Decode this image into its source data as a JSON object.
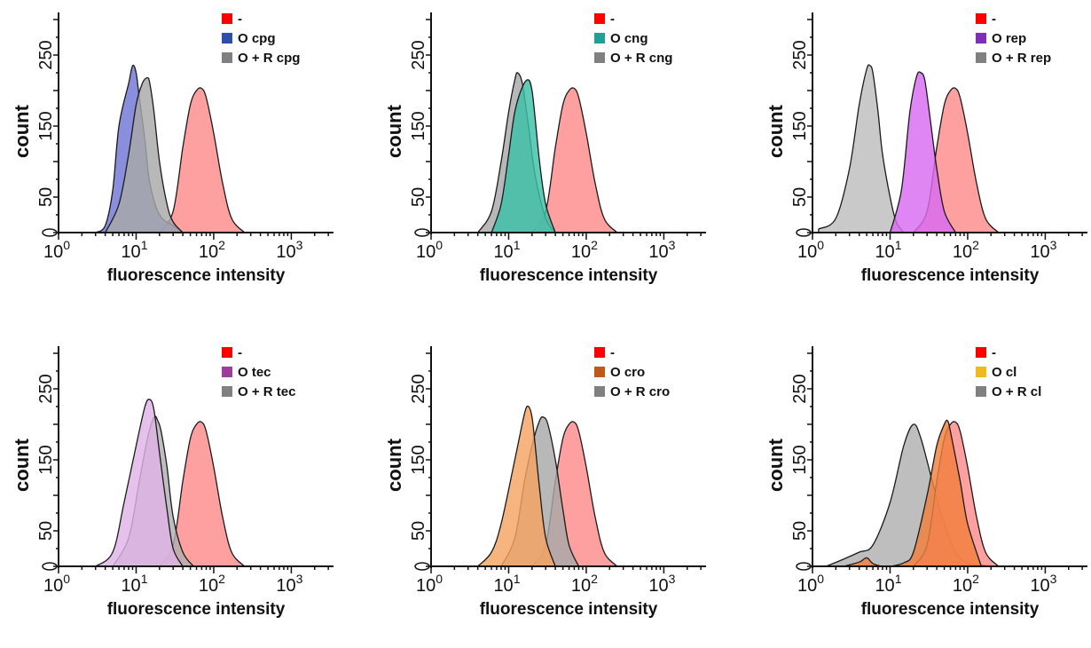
{
  "chart_data": [
    {
      "type": "area",
      "xlabel": "fluorescence intensity",
      "ylabel": "count",
      "xscale": "log",
      "xlim": [
        1,
        3500
      ],
      "ylim": [
        0,
        310
      ],
      "yticks": [
        "50",
        "150",
        "250"
      ],
      "yticks_values": [
        50,
        150,
        250
      ],
      "xticks_exponents": [
        "0",
        "1",
        "2",
        "3"
      ],
      "xticks_base": "10",
      "legend": [
        {
          "label": "-",
          "color": "#ff0000"
        },
        {
          "label": "O cpg",
          "color": "#2f4ea8"
        },
        {
          "label": "O + R cpg",
          "color": "#808080"
        }
      ],
      "series": [
        {
          "name": "-",
          "fill": "#ff8b8b",
          "x": [
            20,
            30,
            40,
            50,
            60,
            70,
            80,
            100,
            130,
            170,
            250
          ],
          "y": [
            0,
            30,
            120,
            180,
            200,
            203,
            190,
            140,
            70,
            20,
            0
          ]
        },
        {
          "name": "O cpg",
          "fill": "#6f76d6",
          "x": [
            3,
            4,
            5,
            6,
            8,
            9,
            10,
            11,
            13,
            15,
            20,
            30,
            40
          ],
          "y": [
            0,
            10,
            60,
            150,
            210,
            235,
            225,
            190,
            130,
            70,
            25,
            10,
            0
          ]
        },
        {
          "name": "O + R cpg",
          "fill": "#a8a8a8",
          "x": [
            4,
            6,
            8,
            10,
            12,
            14,
            15,
            17,
            20,
            25,
            30,
            40
          ],
          "y": [
            0,
            40,
            110,
            180,
            210,
            218,
            210,
            170,
            100,
            40,
            15,
            0
          ]
        }
      ]
    },
    {
      "type": "area",
      "xlabel": "fluorescence intensity",
      "ylabel": "count",
      "xscale": "log",
      "xlim": [
        1,
        3500
      ],
      "ylim": [
        0,
        310
      ],
      "yticks": [
        "50",
        "150",
        "250"
      ],
      "yticks_values": [
        50,
        150,
        250
      ],
      "xticks_exponents": [
        "0",
        "1",
        "2",
        "3"
      ],
      "xticks_base": "10",
      "legend": [
        {
          "label": "-",
          "color": "#ff0000"
        },
        {
          "label": "O cng",
          "color": "#1f9f96"
        },
        {
          "label": "O + R cng",
          "color": "#808080"
        }
      ],
      "series": [
        {
          "name": "-",
          "fill": "#ff8b8b",
          "x": [
            20,
            30,
            40,
            50,
            60,
            70,
            80,
            100,
            130,
            170,
            250
          ],
          "y": [
            0,
            30,
            120,
            180,
            200,
            203,
            190,
            140,
            70,
            20,
            0
          ]
        },
        {
          "name": "O + R cng",
          "fill": "#a8a8a8",
          "x": [
            4,
            6,
            8,
            10,
            12,
            13,
            15,
            18,
            22,
            30,
            40
          ],
          "y": [
            0,
            30,
            100,
            170,
            215,
            225,
            210,
            150,
            80,
            20,
            0
          ]
        },
        {
          "name": "O cng",
          "fill": "#3cc1a8",
          "x": [
            6,
            8,
            10,
            12,
            15,
            18,
            20,
            22,
            25,
            30,
            40
          ],
          "y": [
            0,
            40,
            110,
            170,
            205,
            215,
            200,
            160,
            100,
            40,
            0
          ]
        }
      ]
    },
    {
      "type": "area",
      "xlabel": "fluorescence intensity",
      "ylabel": "count",
      "xscale": "log",
      "xlim": [
        1,
        3500
      ],
      "ylim": [
        0,
        310
      ],
      "yticks": [
        "50",
        "150",
        "250"
      ],
      "yticks_values": [
        50,
        150,
        250
      ],
      "xticks_exponents": [
        "0",
        "1",
        "2",
        "3"
      ],
      "xticks_base": "10",
      "legend": [
        {
          "label": "-",
          "color": "#ff0000"
        },
        {
          "label": "O rep",
          "color": "#7d2fb8"
        },
        {
          "label": "O + R rep",
          "color": "#808080"
        }
      ],
      "series": [
        {
          "name": "O + R rep",
          "fill": "#bdbdbd",
          "x": [
            1.2,
            2,
            3,
            4,
            5,
            5.5,
            6,
            7,
            8,
            10,
            12,
            15
          ],
          "y": [
            5,
            20,
            90,
            180,
            230,
            235,
            225,
            170,
            110,
            50,
            15,
            0
          ]
        },
        {
          "name": "-",
          "fill": "#ff8b8b",
          "x": [
            20,
            30,
            40,
            50,
            60,
            70,
            80,
            100,
            130,
            170,
            250
          ],
          "y": [
            0,
            30,
            120,
            180,
            200,
            203,
            190,
            140,
            70,
            20,
            0
          ]
        },
        {
          "name": "O rep",
          "fill": "#d96af2",
          "x": [
            10,
            14,
            18,
            22,
            25,
            28,
            32,
            40,
            50,
            70
          ],
          "y": [
            0,
            60,
            170,
            220,
            225,
            215,
            170,
            90,
            30,
            0
          ]
        }
      ]
    },
    {
      "type": "area",
      "xlabel": "fluorescence intensity",
      "ylabel": "count",
      "xscale": "log",
      "xlim": [
        1,
        3500
      ],
      "ylim": [
        0,
        310
      ],
      "yticks": [
        "50",
        "150",
        "250"
      ],
      "yticks_values": [
        50,
        150,
        250
      ],
      "xticks_exponents": [
        "0",
        "1",
        "2",
        "3"
      ],
      "xticks_base": "10",
      "legend": [
        {
          "label": "-",
          "color": "#ff0000"
        },
        {
          "label": "O tec",
          "color": "#9b3f9b"
        },
        {
          "label": "O + R tec",
          "color": "#808080"
        }
      ],
      "series": [
        {
          "name": "-",
          "fill": "#ff8b8b",
          "x": [
            20,
            30,
            40,
            50,
            60,
            70,
            80,
            100,
            130,
            170,
            250
          ],
          "y": [
            0,
            30,
            120,
            180,
            200,
            203,
            190,
            140,
            70,
            20,
            0
          ]
        },
        {
          "name": "O + R tec",
          "fill": "#b0b0b0",
          "x": [
            5,
            8,
            11,
            14,
            17,
            19,
            21,
            25,
            30,
            40,
            55
          ],
          "y": [
            0,
            40,
            120,
            180,
            210,
            205,
            190,
            140,
            70,
            20,
            0
          ]
        },
        {
          "name": "O tec",
          "fill": "#e1b3e6",
          "x": [
            3,
            5,
            7,
            10,
            13,
            15,
            17,
            20,
            25,
            30,
            40
          ],
          "y": [
            0,
            20,
            90,
            170,
            225,
            235,
            220,
            160,
            80,
            25,
            0
          ]
        }
      ]
    },
    {
      "type": "area",
      "xlabel": "fluorescence intensity",
      "ylabel": "count",
      "xscale": "log",
      "xlim": [
        1,
        3500
      ],
      "ylim": [
        0,
        310
      ],
      "yticks": [
        "50",
        "150",
        "250"
      ],
      "yticks_values": [
        50,
        150,
        250
      ],
      "xticks_exponents": [
        "0",
        "1",
        "2",
        "3"
      ],
      "xticks_base": "10",
      "legend": [
        {
          "label": "-",
          "color": "#ff0000"
        },
        {
          "label": "O cro",
          "color": "#c0581a"
        },
        {
          "label": "O + R cro",
          "color": "#808080"
        }
      ],
      "series": [
        {
          "name": "-",
          "fill": "#ff8b8b",
          "x": [
            20,
            30,
            40,
            50,
            60,
            70,
            80,
            100,
            130,
            170,
            250
          ],
          "y": [
            0,
            30,
            120,
            180,
            200,
            203,
            190,
            140,
            70,
            20,
            0
          ]
        },
        {
          "name": "O + R cro",
          "fill": "#a8a8a8",
          "x": [
            8,
            12,
            16,
            20,
            25,
            28,
            32,
            40,
            50,
            60,
            80
          ],
          "y": [
            0,
            40,
            120,
            170,
            205,
            210,
            200,
            150,
            80,
            30,
            0
          ]
        },
        {
          "name": "O cro",
          "fill": "#f5a361",
          "x": [
            4,
            6,
            8,
            12,
            16,
            18,
            20,
            22,
            25,
            30,
            40
          ],
          "y": [
            0,
            20,
            60,
            150,
            215,
            225,
            210,
            170,
            110,
            40,
            0
          ]
        }
      ]
    },
    {
      "type": "area",
      "xlabel": "fluorescence intensity",
      "ylabel": "count",
      "xscale": "log",
      "xlim": [
        1,
        3500
      ],
      "ylim": [
        0,
        310
      ],
      "yticks": [
        "50",
        "150",
        "250"
      ],
      "yticks_values": [
        50,
        150,
        250
      ],
      "xticks_exponents": [
        "0",
        "1",
        "2",
        "3"
      ],
      "xticks_base": "10",
      "legend": [
        {
          "label": "-",
          "color": "#ff0000"
        },
        {
          "label": "O cl",
          "color": "#f2b91d"
        },
        {
          "label": "O + R cl",
          "color": "#808080"
        }
      ],
      "series": [
        {
          "name": "O + R cl",
          "fill": "#b0b0b0",
          "x": [
            1.5,
            2.5,
            4,
            6,
            10,
            15,
            20,
            25,
            35,
            50,
            70,
            100,
            150,
            200
          ],
          "y": [
            0,
            10,
            20,
            30,
            90,
            170,
            200,
            180,
            120,
            60,
            20,
            5,
            2,
            0
          ]
        },
        {
          "name": "-",
          "fill": "#ff8b8b",
          "x": [
            20,
            30,
            40,
            50,
            60,
            70,
            80,
            100,
            130,
            170,
            250
          ],
          "y": [
            0,
            30,
            120,
            180,
            200,
            203,
            190,
            140,
            70,
            20,
            0
          ]
        },
        {
          "name": "O cl",
          "fill": "#f27f3d",
          "x": [
            2.5,
            4,
            5,
            6,
            8,
            10,
            15,
            20,
            30,
            40,
            50,
            55,
            60,
            80,
            100,
            150
          ],
          "y": [
            0,
            6,
            12,
            4,
            0,
            0,
            5,
            20,
            100,
            170,
            200,
            205,
            190,
            120,
            60,
            0
          ]
        }
      ]
    }
  ]
}
